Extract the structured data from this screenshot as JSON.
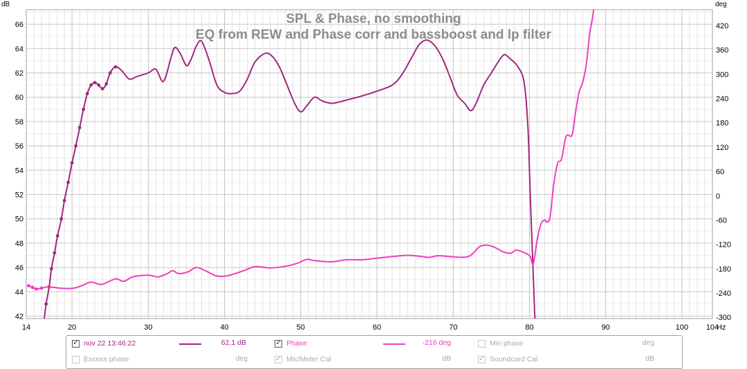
{
  "chart_data": {
    "type": "line",
    "title": "SPL & Phase, no smoothing",
    "subtitle": "EQ from REW and Phase corr and bassboost and lp filter",
    "x_unit": "Hz",
    "y_left_unit": "dB",
    "y_right_unit": "deg",
    "xlim": [
      14,
      104
    ],
    "ylim_left": [
      41.8,
      67.2
    ],
    "ylim_right": [
      -303,
      459
    ],
    "x_ticks": [
      "14",
      "20",
      "30",
      "40",
      "50",
      "60",
      "70",
      "80",
      "90",
      "100",
      "104"
    ],
    "x_tick_values": [
      14,
      20,
      30,
      40,
      50,
      60,
      70,
      80,
      90,
      100,
      104
    ],
    "y_left_ticks": [
      "42",
      "44",
      "46",
      "48",
      "50",
      "52",
      "54",
      "56",
      "58",
      "60",
      "62",
      "64",
      "66"
    ],
    "y_left_tick_values": [
      42,
      44,
      46,
      48,
      50,
      52,
      54,
      56,
      58,
      60,
      62,
      64,
      66
    ],
    "y_right_ticks": [
      "-300",
      "-240",
      "-180",
      "-120",
      "-60",
      "0",
      "60",
      "120",
      "180",
      "240",
      "300",
      "360",
      "420"
    ],
    "y_right_tick_values": [
      -300,
      -240,
      -180,
      -120,
      -60,
      0,
      60,
      120,
      180,
      240,
      300,
      360,
      420
    ],
    "grid": true,
    "series": [
      {
        "name": "nov 22 13:46:22",
        "axis": "left",
        "color": "#a0267f",
        "markers_upto_x": 26,
        "points": [
          [
            16.3,
            41.5
          ],
          [
            16.6,
            43
          ],
          [
            17,
            44.4
          ],
          [
            17.3,
            45.9
          ],
          [
            17.7,
            47.2
          ],
          [
            18.1,
            48.6
          ],
          [
            18.6,
            50
          ],
          [
            19,
            51.5
          ],
          [
            19.5,
            53
          ],
          [
            20,
            54.6
          ],
          [
            20.5,
            56
          ],
          [
            21,
            57.5
          ],
          [
            21.5,
            59
          ],
          [
            22,
            60.3
          ],
          [
            22.5,
            61
          ],
          [
            23,
            61.2
          ],
          [
            23.5,
            61
          ],
          [
            24,
            60.7
          ],
          [
            24.5,
            61.1
          ],
          [
            25,
            62
          ],
          [
            25.7,
            62.5
          ],
          [
            26.5,
            62.2
          ],
          [
            27.5,
            61.5
          ],
          [
            28.5,
            61.7
          ],
          [
            30,
            62
          ],
          [
            31,
            62.3
          ],
          [
            32,
            61.3
          ],
          [
            33,
            63.3
          ],
          [
            33.5,
            64.1
          ],
          [
            34.2,
            63.6
          ],
          [
            35,
            62.6
          ],
          [
            35.6,
            63.1
          ],
          [
            36.3,
            64.2
          ],
          [
            37,
            64.6
          ],
          [
            38,
            63
          ],
          [
            39,
            61
          ],
          [
            40,
            60.4
          ],
          [
            41,
            60.3
          ],
          [
            42,
            60.5
          ],
          [
            43,
            61.5
          ],
          [
            44,
            62.9
          ],
          [
            45.3,
            63.6
          ],
          [
            46.2,
            63.4
          ],
          [
            47.2,
            62.5
          ],
          [
            48.2,
            61
          ],
          [
            49.2,
            59.5
          ],
          [
            50,
            58.8
          ],
          [
            50.8,
            59.3
          ],
          [
            51.8,
            60
          ],
          [
            52.8,
            59.7
          ],
          [
            54,
            59.5
          ],
          [
            55,
            59.6
          ],
          [
            56.2,
            59.8
          ],
          [
            58,
            60.1
          ],
          [
            60,
            60.5
          ],
          [
            62,
            61
          ],
          [
            63.2,
            61.8
          ],
          [
            64.5,
            63.2
          ],
          [
            65.5,
            64.3
          ],
          [
            66.5,
            64.7
          ],
          [
            67.5,
            64.3
          ],
          [
            68.5,
            63.3
          ],
          [
            69.5,
            61.8
          ],
          [
            70.5,
            60.2
          ],
          [
            71.5,
            59.5
          ],
          [
            72.3,
            58.9
          ],
          [
            73,
            59.5
          ],
          [
            74,
            61
          ],
          [
            75,
            62
          ],
          [
            76,
            63
          ],
          [
            76.7,
            63.5
          ],
          [
            77.4,
            63.2
          ],
          [
            78.5,
            62.5
          ],
          [
            79.3,
            61.2
          ],
          [
            79.8,
            57.5
          ],
          [
            80.1,
            52
          ],
          [
            80.4,
            47
          ],
          [
            80.7,
            42
          ],
          [
            80.9,
            40
          ]
        ]
      },
      {
        "name": "Phase",
        "axis": "right",
        "color": "#f03cc0",
        "markers_upto_x": 16,
        "points": [
          [
            14.3,
            -222
          ],
          [
            14.8,
            -226
          ],
          [
            15.3,
            -230
          ],
          [
            16,
            -228
          ],
          [
            16.7,
            -225
          ],
          [
            17.5,
            -226
          ],
          [
            18.5,
            -228
          ],
          [
            19.5,
            -229
          ],
          [
            20.5,
            -227
          ],
          [
            21.5,
            -220
          ],
          [
            22.5,
            -213
          ],
          [
            23.8,
            -219
          ],
          [
            24.8,
            -212
          ],
          [
            25.8,
            -205
          ],
          [
            26.8,
            -211
          ],
          [
            28,
            -200
          ],
          [
            30,
            -196
          ],
          [
            31.3,
            -200
          ],
          [
            32.5,
            -192
          ],
          [
            33.2,
            -185
          ],
          [
            34,
            -192
          ],
          [
            35.2,
            -188
          ],
          [
            36.3,
            -177
          ],
          [
            37.5,
            -185
          ],
          [
            39,
            -198
          ],
          [
            40.5,
            -197
          ],
          [
            42.5,
            -185
          ],
          [
            44,
            -175
          ],
          [
            46,
            -178
          ],
          [
            48,
            -174
          ],
          [
            49.5,
            -167
          ],
          [
            50.8,
            -157
          ],
          [
            51.8,
            -160
          ],
          [
            54,
            -163
          ],
          [
            56,
            -158
          ],
          [
            58,
            -158
          ],
          [
            60,
            -154
          ],
          [
            62,
            -150
          ],
          [
            64,
            -147
          ],
          [
            65.5,
            -149
          ],
          [
            66.8,
            -152
          ],
          [
            68,
            -148
          ],
          [
            69.5,
            -150
          ],
          [
            71,
            -152
          ],
          [
            72,
            -150
          ],
          [
            72.7,
            -140
          ],
          [
            73.5,
            -125
          ],
          [
            74.5,
            -122
          ],
          [
            75.5,
            -128
          ],
          [
            76.5,
            -138
          ],
          [
            77.5,
            -142
          ],
          [
            78.3,
            -134
          ],
          [
            79.5,
            -142
          ],
          [
            80.1,
            -150
          ],
          [
            80.5,
            -168
          ],
          [
            81,
            -110
          ],
          [
            81.5,
            -70
          ],
          [
            82,
            -60
          ],
          [
            82.3,
            -65
          ],
          [
            82.7,
            -52
          ],
          [
            83.2,
            30
          ],
          [
            83.7,
            80
          ],
          [
            84.2,
            90
          ],
          [
            84.7,
            140
          ],
          [
            85,
            150
          ],
          [
            85.6,
            150
          ],
          [
            86,
            200
          ],
          [
            86.5,
            255
          ],
          [
            87,
            280
          ],
          [
            87.5,
            330
          ],
          [
            87.9,
            400
          ],
          [
            88.2,
            430
          ],
          [
            88.5,
            470
          ]
        ]
      }
    ]
  },
  "legend": {
    "row1": [
      {
        "label": "nov 22 13:46:22",
        "checked": "✓",
        "value": "62,1 dB",
        "color": "#a0267f"
      },
      {
        "label": "Phase",
        "checked": "✓",
        "value": "-216 deg",
        "color": "#f03cc0"
      },
      {
        "label": "Min phase",
        "checked": "",
        "unit": "deg"
      }
    ],
    "row2": [
      {
        "label": "Excess phase",
        "checked": "",
        "unit": "deg"
      },
      {
        "label": "Mic/Meter Cal",
        "checked": "✓",
        "unit": "dB"
      },
      {
        "label": "Soundcard Cal",
        "checked": "✓",
        "unit": "dB"
      }
    ]
  }
}
